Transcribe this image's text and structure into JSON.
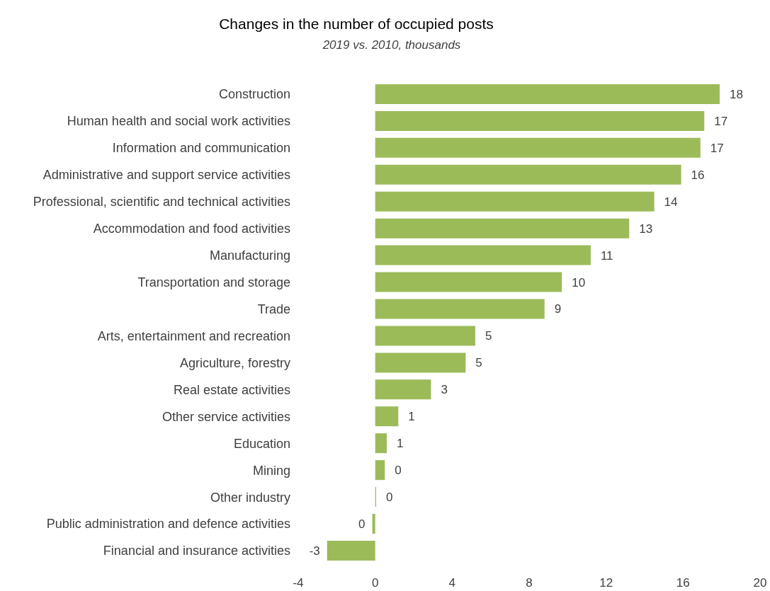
{
  "chart_data": {
    "type": "bar",
    "orientation": "horizontal",
    "title": "Changes in the number of occupied posts",
    "subtitle": "2019 vs. 2010, thousands",
    "categories": [
      "Construction",
      "Human health and social work activities",
      "Information and communication",
      "Administrative and support service activities",
      "Professional, scientific and technical activities",
      "Accommodation and food activities",
      "Manufacturing",
      "Transportation and storage",
      "Trade",
      "Arts, entertainment and recreation",
      "Agriculture, forestry",
      "Real estate activities",
      "Other service activities",
      "Education",
      "Mining",
      "Other industry",
      "Public administration and defence activities",
      "Financial and insurance activities"
    ],
    "values": [
      17.9,
      17.1,
      16.9,
      15.9,
      14.5,
      13.2,
      11.2,
      9.7,
      8.8,
      5.2,
      4.7,
      2.9,
      1.2,
      0.6,
      0.5,
      0.05,
      -0.15,
      -2.5
    ],
    "value_labels": [
      "18",
      "17",
      "17",
      "16",
      "14",
      "13",
      "11",
      "10",
      "9",
      "5",
      "5",
      "3",
      "1",
      "1",
      "0",
      "0",
      "0",
      "-3"
    ],
    "color": "#9bbb59",
    "xlim": [
      -4,
      20
    ],
    "xticks": [
      -4,
      0,
      4,
      8,
      12,
      16,
      20
    ],
    "grid": false
  }
}
